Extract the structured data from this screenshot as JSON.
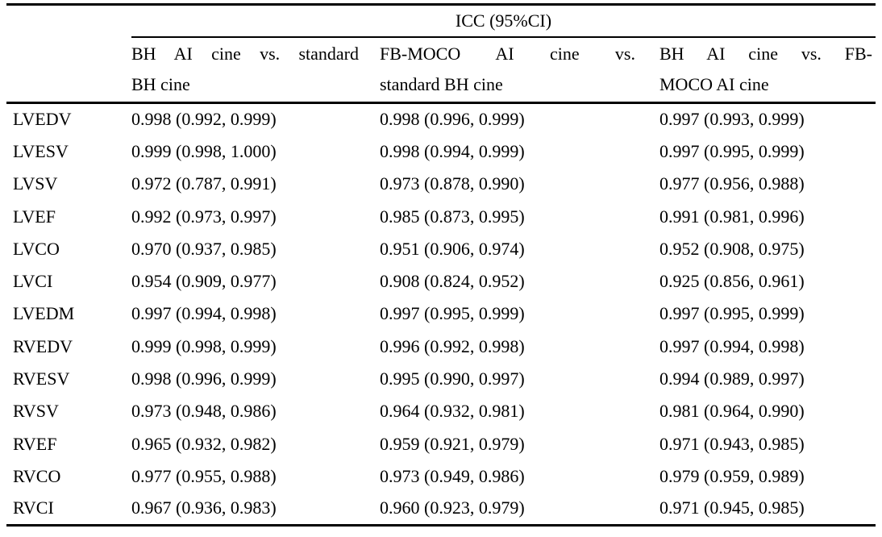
{
  "table": {
    "spanner": "ICC (95%CI)",
    "columns": [
      {
        "label": "BH AI cine vs. standard BH cine",
        "line1": "BH AI cine vs. standard",
        "line2": "BH cine"
      },
      {
        "label": "FB-MOCO AI cine vs. standard BH cine",
        "line1": "FB-MOCO AI cine vs.",
        "line2": "standard BH cine"
      },
      {
        "label": "BH AI cine vs. FB-MOCO AI cine",
        "line1": "BH AI cine vs. FB-",
        "line2": "MOCO AI cine"
      }
    ],
    "rows": [
      {
        "label": "LVEDV",
        "values": [
          "0.998 (0.992, 0.999)",
          "0.998 (0.996, 0.999)",
          "0.997 (0.993, 0.999)"
        ]
      },
      {
        "label": "LVESV",
        "values": [
          "0.999 (0.998, 1.000)",
          "0.998 (0.994, 0.999)",
          "0.997 (0.995, 0.999)"
        ]
      },
      {
        "label": "LVSV",
        "values": [
          "0.972 (0.787, 0.991)",
          "0.973 (0.878, 0.990)",
          "0.977 (0.956, 0.988)"
        ]
      },
      {
        "label": "LVEF",
        "values": [
          "0.992 (0.973, 0.997)",
          "0.985 (0.873, 0.995)",
          "0.991 (0.981, 0.996)"
        ]
      },
      {
        "label": "LVCO",
        "values": [
          "0.970 (0.937, 0.985)",
          "0.951 (0.906, 0.974)",
          "0.952 (0.908, 0.975)"
        ]
      },
      {
        "label": "LVCI",
        "values": [
          "0.954 (0.909, 0.977)",
          "0.908 (0.824, 0.952)",
          "0.925 (0.856, 0.961)"
        ]
      },
      {
        "label": "LVEDM",
        "values": [
          "0.997 (0.994, 0.998)",
          "0.997 (0.995, 0.999)",
          "0.997 (0.995, 0.999)"
        ]
      },
      {
        "label": "RVEDV",
        "values": [
          "0.999 (0.998, 0.999)",
          "0.996 (0.992, 0.998)",
          "0.997 (0.994, 0.998)"
        ]
      },
      {
        "label": "RVESV",
        "values": [
          "0.998 (0.996, 0.999)",
          "0.995 (0.990, 0.997)",
          "0.994 (0.989, 0.997)"
        ]
      },
      {
        "label": "RVSV",
        "values": [
          "0.973 (0.948, 0.986)",
          "0.964 (0.932, 0.981)",
          "0.981 (0.964, 0.990)"
        ]
      },
      {
        "label": "RVEF",
        "values": [
          "0.965 (0.932, 0.982)",
          "0.959 (0.921, 0.979)",
          "0.971 (0.943, 0.985)"
        ]
      },
      {
        "label": "RVCO",
        "values": [
          "0.977 (0.955, 0.988)",
          "0.973 (0.949, 0.986)",
          "0.979 (0.959, 0.989)"
        ]
      },
      {
        "label": "RVCI",
        "values": [
          "0.967 (0.936, 0.983)",
          "0.960 (0.923, 0.979)",
          "0.971 (0.945, 0.985)"
        ]
      }
    ]
  },
  "colors": {
    "text": "#000000",
    "background": "#ffffff",
    "rule": "#000000"
  }
}
